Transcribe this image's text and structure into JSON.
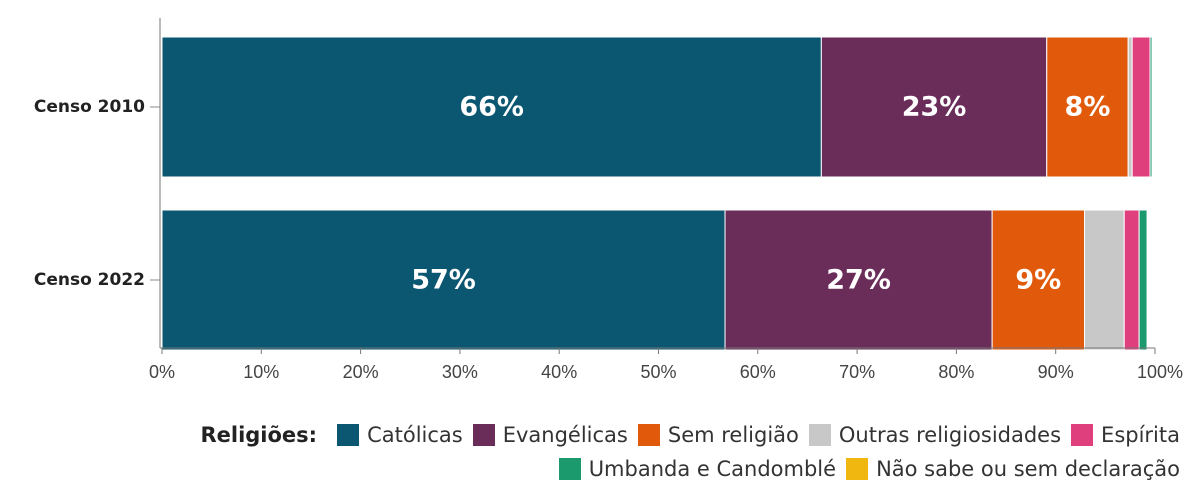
{
  "chart_data": {
    "type": "bar",
    "orientation": "horizontal",
    "stacked": true,
    "categories": [
      "Censo 2010",
      "Censo 2022"
    ],
    "series": [
      {
        "name": "Católicas",
        "color": "#0b5670",
        "values": [
          66.4,
          56.7
        ],
        "labels": [
          "66%",
          "57%"
        ]
      },
      {
        "name": "Evangélicas",
        "color": "#6a2d5a",
        "values": [
          22.7,
          26.9
        ],
        "labels": [
          "23%",
          "27%"
        ]
      },
      {
        "name": "Sem religião",
        "color": "#e15a0c",
        "values": [
          8.2,
          9.3
        ],
        "labels": [
          "8%",
          "9%"
        ]
      },
      {
        "name": "Outras religiosidades",
        "color": "#c8c8c8",
        "values": [
          0.4,
          4.0
        ],
        "labels": [
          "",
          ""
        ]
      },
      {
        "name": "Espírita",
        "color": "#e03f7e",
        "values": [
          1.8,
          1.5
        ],
        "labels": [
          "",
          ""
        ]
      },
      {
        "name": "Umbanda e Candomblé",
        "color": "#1b9a6e",
        "values": [
          0.2,
          0.8
        ],
        "labels": [
          "",
          ""
        ]
      },
      {
        "name": "Não sabe ou sem declaração",
        "color": "#efb70f",
        "values": [
          0.0,
          0.0
        ],
        "labels": [
          "",
          ""
        ]
      }
    ],
    "xlim": [
      0,
      100
    ],
    "xticks": [
      0,
      10,
      20,
      30,
      40,
      50,
      60,
      70,
      80,
      90,
      100
    ],
    "xtick_labels": [
      "0%",
      "10%",
      "20%",
      "30%",
      "40%",
      "50%",
      "60%",
      "70%",
      "80%",
      "90%",
      "100%"
    ],
    "legend_title": "Religiões:",
    "legend_placement": "bottom",
    "grid": false
  }
}
